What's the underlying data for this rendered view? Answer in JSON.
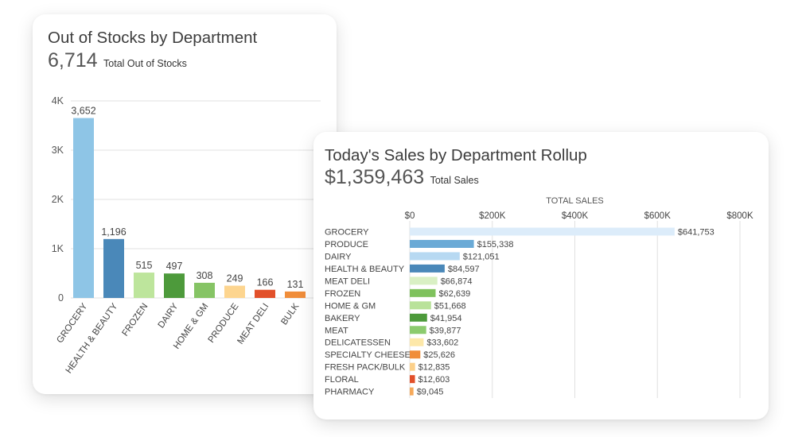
{
  "charts": [
    {
      "title": "Out of Stocks by Department",
      "kpi_value": "6,714",
      "kpi_label": "Total Out of Stocks"
    },
    {
      "title": "Today's Sales by Department Rollup",
      "kpi_value": "$1,359,463",
      "kpi_label": "Total Sales",
      "axis_title": "TOTAL SALES"
    }
  ],
  "chart_data": [
    {
      "type": "bar",
      "orientation": "vertical",
      "title": "Out of Stocks by Department",
      "categories": [
        "GROCERY",
        "HEALTH & BEAUTY",
        "FROZEN",
        "DAIRY",
        "HOME & GM",
        "PRODUCE",
        "MEAT DELI",
        "BULK"
      ],
      "values": [
        3652,
        1196,
        515,
        497,
        308,
        249,
        166,
        131
      ],
      "value_labels": [
        "3,652",
        "1,196",
        "515",
        "497",
        "308",
        "249",
        "166",
        "131"
      ],
      "colors": [
        "#8ec5e6",
        "#4a88b9",
        "#bde59c",
        "#4d9a3b",
        "#86c465",
        "#fdd58f",
        "#e2502a",
        "#f08d3a"
      ],
      "ylim": [
        0,
        4000
      ],
      "yticks": [
        0,
        1000,
        2000,
        3000,
        4000
      ],
      "ytick_labels": [
        "0",
        "1K",
        "2K",
        "3K",
        "4K"
      ],
      "grid": true
    },
    {
      "type": "bar",
      "orientation": "horizontal",
      "title": "Today's Sales by Department Rollup",
      "xlabel": "TOTAL SALES",
      "categories": [
        "GROCERY",
        "PRODUCE",
        "DAIRY",
        "HEALTH & BEAUTY",
        "MEAT DELI",
        "FROZEN",
        "HOME & GM",
        "BAKERY",
        "MEAT",
        "DELICATESSEN",
        "SPECIALTY CHEESE",
        "FRESH PACK/BULK",
        "FLORAL",
        "PHARMACY"
      ],
      "values": [
        641753,
        155338,
        121051,
        84597,
        66874,
        62639,
        51668,
        41954,
        39877,
        33602,
        25626,
        12835,
        12603,
        9045
      ],
      "value_labels": [
        "$641,753",
        "$155,338",
        "$121,051",
        "$84,597",
        "$66,874",
        "$62,639",
        "$51,668",
        "$41,954",
        "$39,877",
        "$33,602",
        "$25,626",
        "$12,835",
        "$12,603",
        "$9,045"
      ],
      "colors": [
        "#dcecfa",
        "#6aaad6",
        "#b7d9f2",
        "#4a88b9",
        "#d9f0c4",
        "#7fc25d",
        "#b9e29a",
        "#4d9a3b",
        "#8ccb6e",
        "#fde8a9",
        "#f08d3a",
        "#fcd08a",
        "#e2502a",
        "#f6a95a"
      ],
      "xlim": [
        0,
        800000
      ],
      "xticks": [
        0,
        200000,
        400000,
        600000,
        800000
      ],
      "xtick_labels": [
        "$0",
        "$200K",
        "$400K",
        "$600K",
        "$800K"
      ],
      "grid": true
    }
  ]
}
